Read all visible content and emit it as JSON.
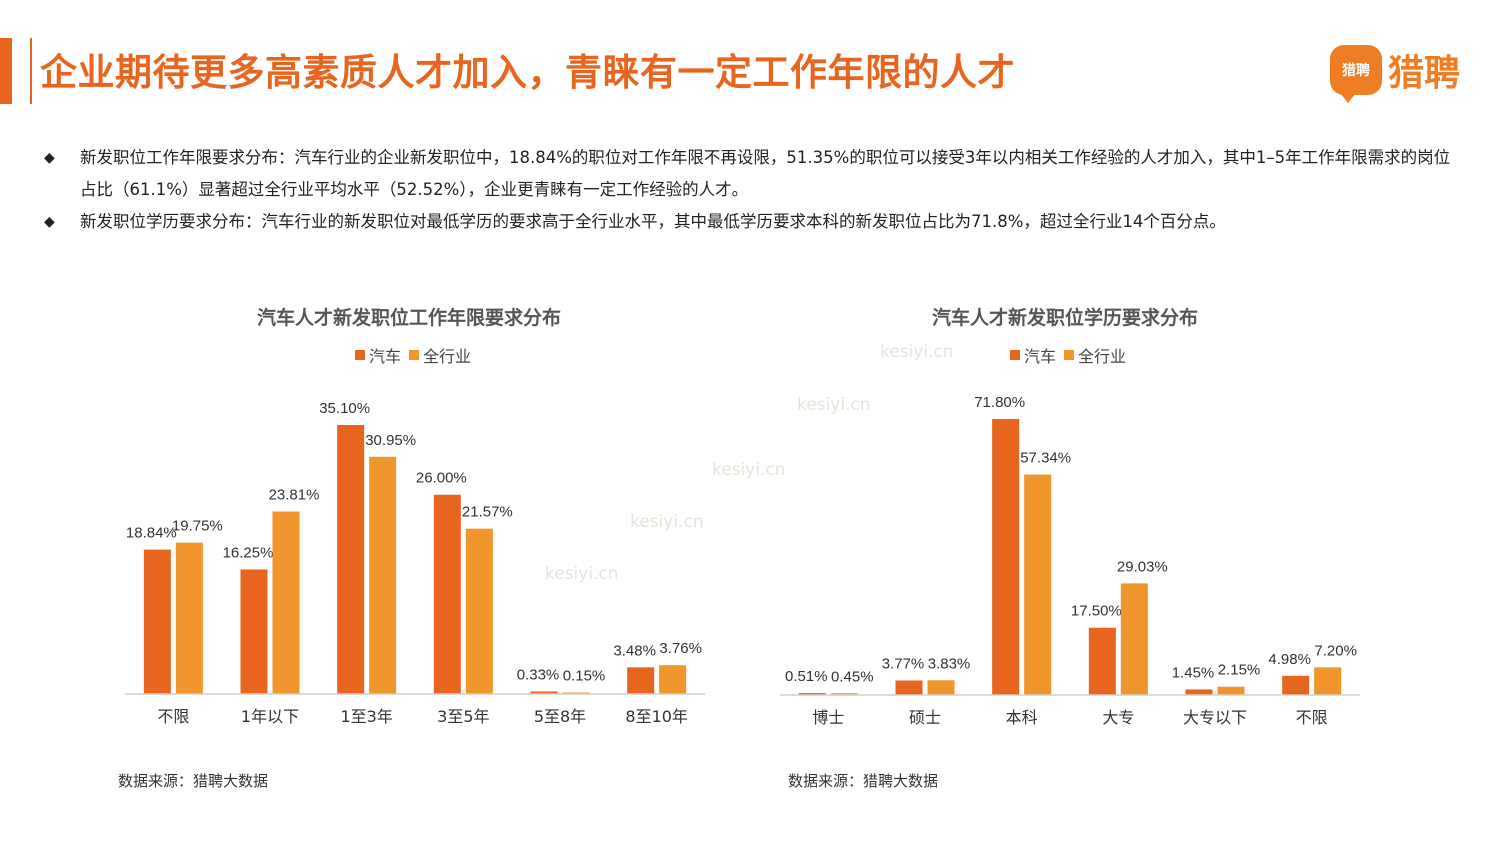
{
  "header": {
    "title": "企业期待更多高素质人才加入，青睐有一定工作年限的人才",
    "logo_badge": "猎聘",
    "logo_text": "猎聘"
  },
  "bullets": [
    "新发职位工作年限要求分布：汽车行业的企业新发职位中，18.84%的职位对工作年限不再设限，51.35%的职位可以接受3年以内相关工作经验的人才加入，其中1–5年工作年限需求的岗位占比（61.1%）显著超过全行业平均水平（52.52%），企业更青睐有一定工作经验的人才。",
    "新发职位学历要求分布：汽车行业的新发职位对最低学历的要求高于全行业水平，其中最低学历要求本科的新发职位占比为71.8%，超过全行业14个百分点。"
  ],
  "watermark": "kesiyi.cn",
  "colors": {
    "auto": "#e8651f",
    "all": "#f0962d",
    "accent": "#e8651f"
  },
  "chart_data": [
    {
      "type": "bar",
      "title": "汽车人才新发职位工作年限要求分布",
      "categories": [
        "不限",
        "1年以下",
        "1至3年",
        "3至5年",
        "5至8年",
        "8至10年"
      ],
      "series": [
        {
          "name": "汽车",
          "values": [
            18.84,
            16.25,
            35.1,
            26.0,
            0.33,
            3.48
          ],
          "labels": [
            "18.84%",
            "16.25%",
            "35.10%",
            "26.00%",
            "0.33%",
            "3.48%"
          ]
        },
        {
          "name": "全行业",
          "values": [
            19.75,
            23.81,
            30.95,
            21.57,
            0.15,
            3.76
          ],
          "labels": [
            "19.75%",
            "23.81%",
            "30.95%",
            "21.57%",
            "0.15%",
            "3.76%"
          ]
        }
      ],
      "ylim": [
        0,
        35.1
      ],
      "source": "数据来源：猎聘大数据"
    },
    {
      "type": "bar",
      "title": "汽车人才新发职位学历要求分布",
      "categories": [
        "博士",
        "硕士",
        "本科",
        "大专",
        "大专以下",
        "不限"
      ],
      "series": [
        {
          "name": "汽车",
          "values": [
            0.51,
            3.77,
            71.8,
            17.5,
            1.45,
            4.98
          ],
          "labels": [
            "0.51%",
            "3.77%",
            "71.80%",
            "17.50%",
            "1.45%",
            "4.98%"
          ]
        },
        {
          "name": "全行业",
          "values": [
            0.45,
            3.83,
            57.34,
            29.03,
            2.15,
            7.2
          ],
          "labels": [
            "0.45%",
            "3.83%",
            "57.34%",
            "29.03%",
            "2.15%",
            "7.20%"
          ]
        }
      ],
      "ylim": [
        0,
        71.8
      ],
      "source": "数据来源：猎聘大数据"
    }
  ]
}
